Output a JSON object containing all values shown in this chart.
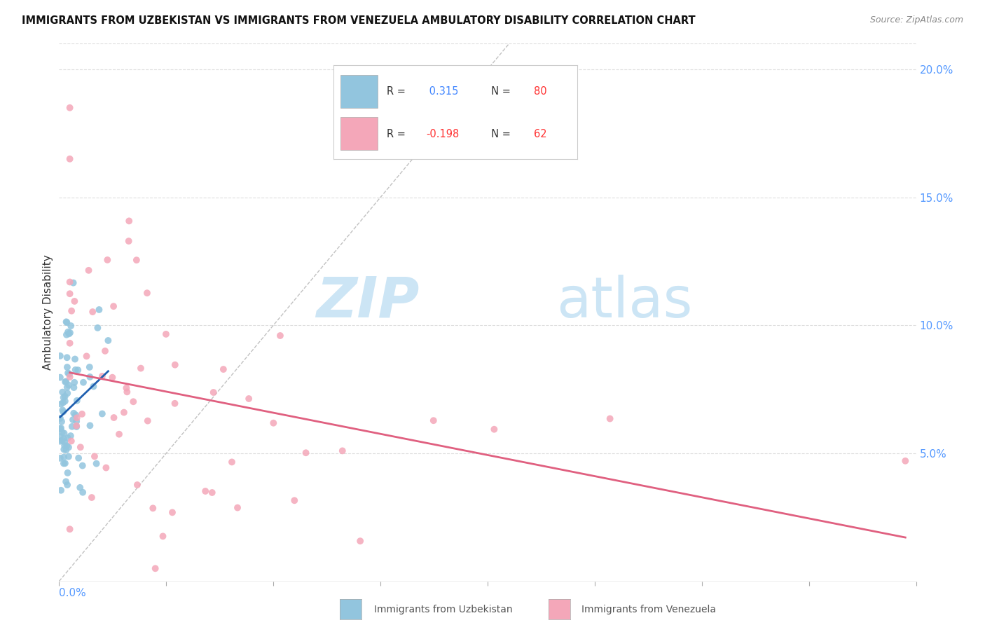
{
  "title": "IMMIGRANTS FROM UZBEKISTAN VS IMMIGRANTS FROM VENEZUELA AMBULATORY DISABILITY CORRELATION CHART",
  "source": "Source: ZipAtlas.com",
  "ylabel": "Ambulatory Disability",
  "x_min": 0.0,
  "x_max": 0.4,
  "y_min": 0.0,
  "y_max": 0.21,
  "r_uzb": 0.315,
  "r_ven": -0.198,
  "n_uzb": 80,
  "n_ven": 62,
  "color_uzb": "#92c5de",
  "color_ven": "#f4a7b9",
  "trendline_uzb_color": "#2060b0",
  "trendline_ven_color": "#e06080",
  "diagonal_color": "#bbbbbb",
  "watermark_zip": "ZIP",
  "watermark_atlas": "atlas",
  "watermark_color": "#cce5f5",
  "background_color": "#ffffff",
  "grid_color": "#dddddd",
  "label_color": "#5599ff",
  "text_color": "#333333",
  "source_color": "#888888"
}
